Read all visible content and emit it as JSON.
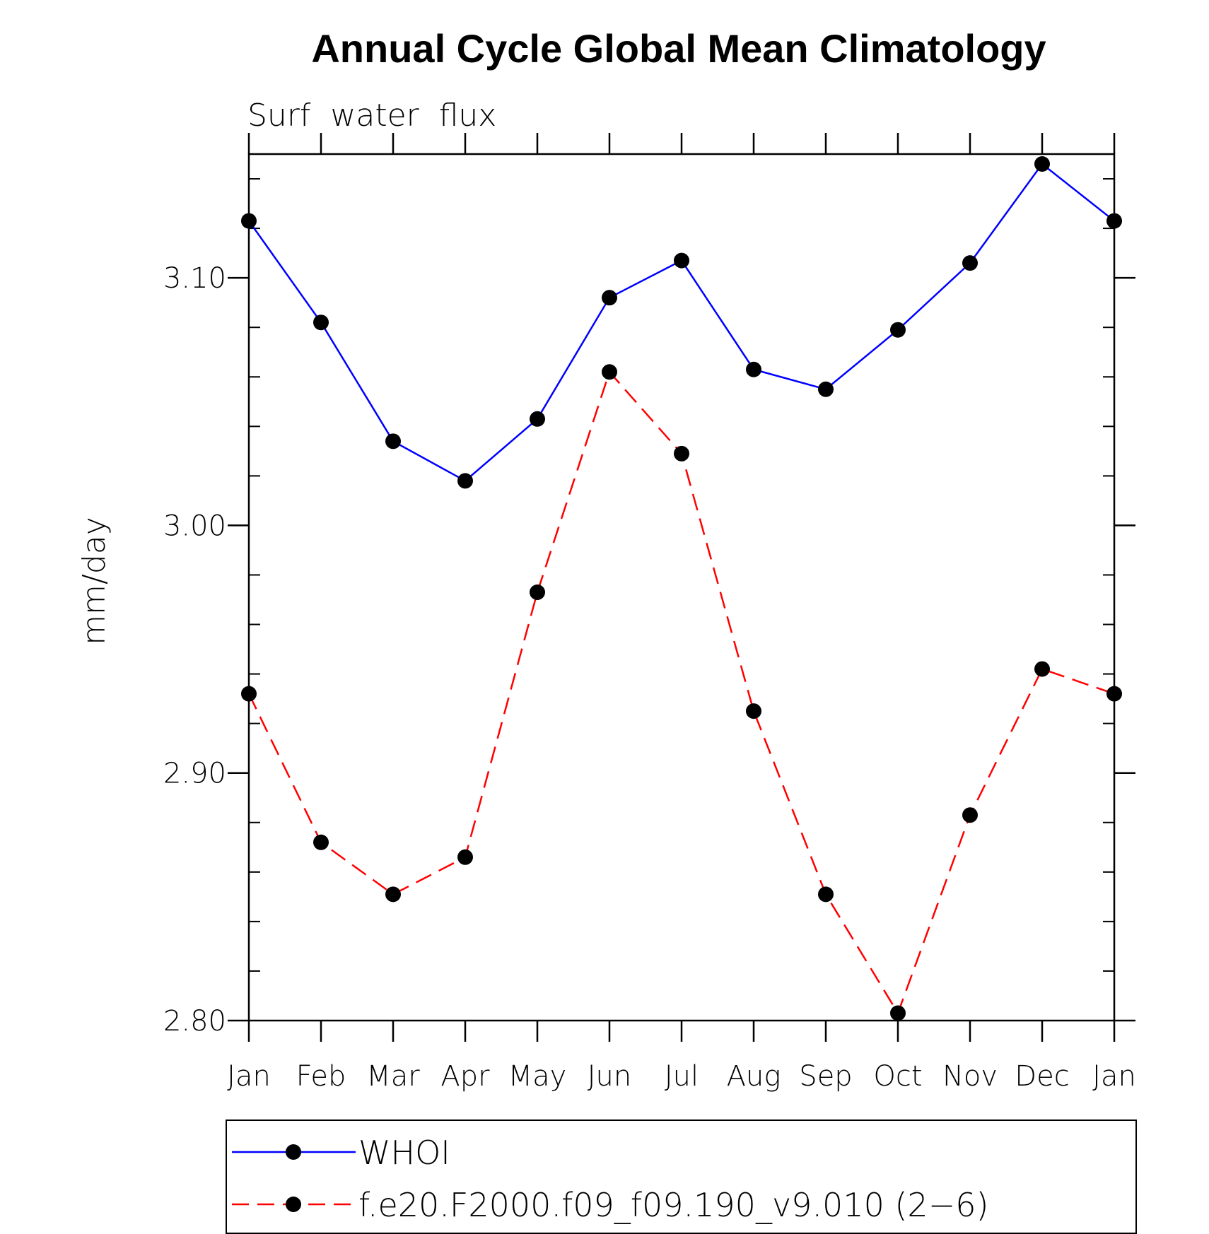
{
  "chart_data": {
    "type": "line",
    "title": "Annual Cycle Global Mean Climatology",
    "subtitle": "Surf  water  flux",
    "xlabel": "",
    "ylabel": "mm/day",
    "categories": [
      "Jan",
      "Feb",
      "Mar",
      "Apr",
      "May",
      "Jun",
      "Jul",
      "Aug",
      "Sep",
      "Oct",
      "Nov",
      "Dec",
      "Jan"
    ],
    "ylim": [
      2.8,
      3.15
    ],
    "yticks": [
      2.8,
      2.9,
      3.0,
      3.1
    ],
    "ytick_labels": [
      "2.80",
      "2.90",
      "3.00",
      "3.10"
    ],
    "series": [
      {
        "name": "WHOI",
        "color": "#0000ff",
        "line_style": "solid",
        "marker": "circle",
        "values": [
          3.123,
          3.082,
          3.034,
          3.018,
          3.043,
          3.092,
          3.107,
          3.063,
          3.055,
          3.079,
          3.106,
          3.146,
          3.123
        ]
      },
      {
        "name": "f.e20.F2000.f09_f09.190_v9.010 (2−6)",
        "color": "#ff0000",
        "line_style": "dashed",
        "marker": "circle",
        "values": [
          2.932,
          2.872,
          2.851,
          2.866,
          2.973,
          3.062,
          3.029,
          2.925,
          2.851,
          2.803,
          2.883,
          2.942,
          2.932
        ]
      }
    ],
    "grid": false,
    "legend_position": "bottom"
  }
}
